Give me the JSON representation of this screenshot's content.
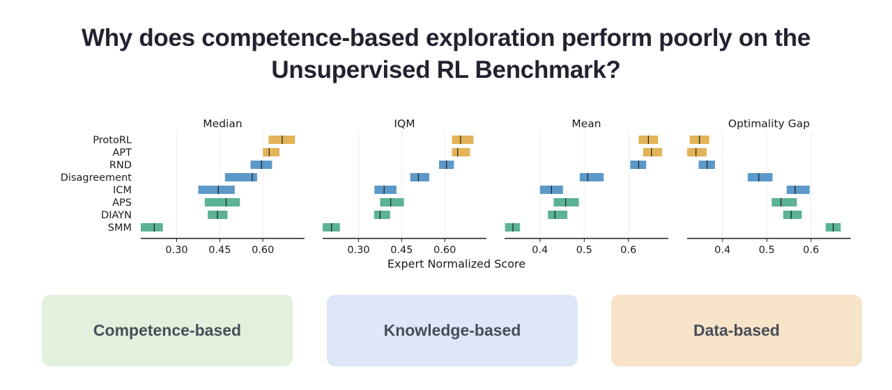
{
  "title": {
    "line1": "Why does competence-based exploration perform poorly on the",
    "line2": "Unsupervised RL Benchmark?"
  },
  "chart_data": {
    "type": "interval",
    "xlabel": "Expert Normalized Score",
    "algorithms": [
      "ProtoRL",
      "APT",
      "RND",
      "Disagreement",
      "ICM",
      "APS",
      "DIAYN",
      "SMM"
    ],
    "colors": {
      "ProtoRL": "#dea63a",
      "APT": "#dea63a",
      "RND": "#3f87be",
      "Disagreement": "#3f87be",
      "ICM": "#3f87be",
      "APS": "#3fa682",
      "DIAYN": "#3fa682",
      "SMM": "#3fa682"
    },
    "panels": [
      {
        "name": "Median",
        "xlim": [
          0.175,
          0.745
        ],
        "ticks": [
          0.3,
          0.45,
          0.6
        ],
        "tick_labels": [
          "0.30",
          "0.45",
          "0.60"
        ],
        "intervals": [
          {
            "low": 0.62,
            "mid": 0.667,
            "high": 0.712
          },
          {
            "low": 0.6,
            "mid": 0.622,
            "high": 0.658
          },
          {
            "low": 0.557,
            "mid": 0.595,
            "high": 0.632
          },
          {
            "low": 0.468,
            "mid": 0.563,
            "high": 0.58
          },
          {
            "low": 0.375,
            "mid": 0.445,
            "high": 0.502
          },
          {
            "low": 0.398,
            "mid": 0.472,
            "high": 0.52
          },
          {
            "low": 0.408,
            "mid": 0.442,
            "high": 0.477
          },
          {
            "low": 0.175,
            "mid": 0.222,
            "high": 0.252
          }
        ]
      },
      {
        "name": "IQM",
        "xlim": [
          0.175,
          0.745
        ],
        "ticks": [
          0.3,
          0.45,
          0.6
        ],
        "tick_labels": [
          "0.30",
          "0.45",
          "0.60"
        ],
        "intervals": [
          {
            "low": 0.625,
            "mid": 0.655,
            "high": 0.7
          },
          {
            "low": 0.625,
            "mid": 0.645,
            "high": 0.688
          },
          {
            "low": 0.58,
            "mid": 0.606,
            "high": 0.632
          },
          {
            "low": 0.48,
            "mid": 0.508,
            "high": 0.546
          },
          {
            "low": 0.355,
            "mid": 0.389,
            "high": 0.432
          },
          {
            "low": 0.375,
            "mid": 0.412,
            "high": 0.458
          },
          {
            "low": 0.354,
            "mid": 0.375,
            "high": 0.41
          },
          {
            "low": 0.175,
            "mid": 0.206,
            "high": 0.235
          }
        ]
      },
      {
        "name": "Mean",
        "xlim": [
          0.32,
          0.69
        ],
        "ticks": [
          0.4,
          0.5,
          0.6
        ],
        "tick_labels": [
          "0.4",
          "0.5",
          "0.6"
        ],
        "intervals": [
          {
            "low": 0.623,
            "mid": 0.645,
            "high": 0.667
          },
          {
            "low": 0.633,
            "mid": 0.652,
            "high": 0.676
          },
          {
            "low": 0.604,
            "mid": 0.623,
            "high": 0.64
          },
          {
            "low": 0.49,
            "mid": 0.508,
            "high": 0.544
          },
          {
            "low": 0.4,
            "mid": 0.426,
            "high": 0.452
          },
          {
            "low": 0.431,
            "mid": 0.458,
            "high": 0.488
          },
          {
            "low": 0.418,
            "mid": 0.434,
            "high": 0.462
          },
          {
            "low": 0.321,
            "mid": 0.339,
            "high": 0.355
          }
        ]
      },
      {
        "name": "Optimality Gap",
        "xlim": [
          0.32,
          0.69
        ],
        "ticks": [
          0.4,
          0.5,
          0.6
        ],
        "tick_labels": [
          "0.4",
          "0.5",
          "0.6"
        ],
        "intervals": [
          {
            "low": 0.326,
            "mid": 0.348,
            "high": 0.37
          },
          {
            "low": 0.32,
            "mid": 0.34,
            "high": 0.364
          },
          {
            "low": 0.346,
            "mid": 0.365,
            "high": 0.383
          },
          {
            "low": 0.457,
            "mid": 0.482,
            "high": 0.513
          },
          {
            "low": 0.545,
            "mid": 0.564,
            "high": 0.597
          },
          {
            "low": 0.511,
            "mid": 0.532,
            "high": 0.568
          },
          {
            "low": 0.537,
            "mid": 0.555,
            "high": 0.579
          },
          {
            "low": 0.633,
            "mid": 0.65,
            "high": 0.667
          }
        ]
      }
    ]
  },
  "cards": {
    "competence": "Competence-based",
    "knowledge": "Knowledge-based",
    "data": "Data-based"
  }
}
